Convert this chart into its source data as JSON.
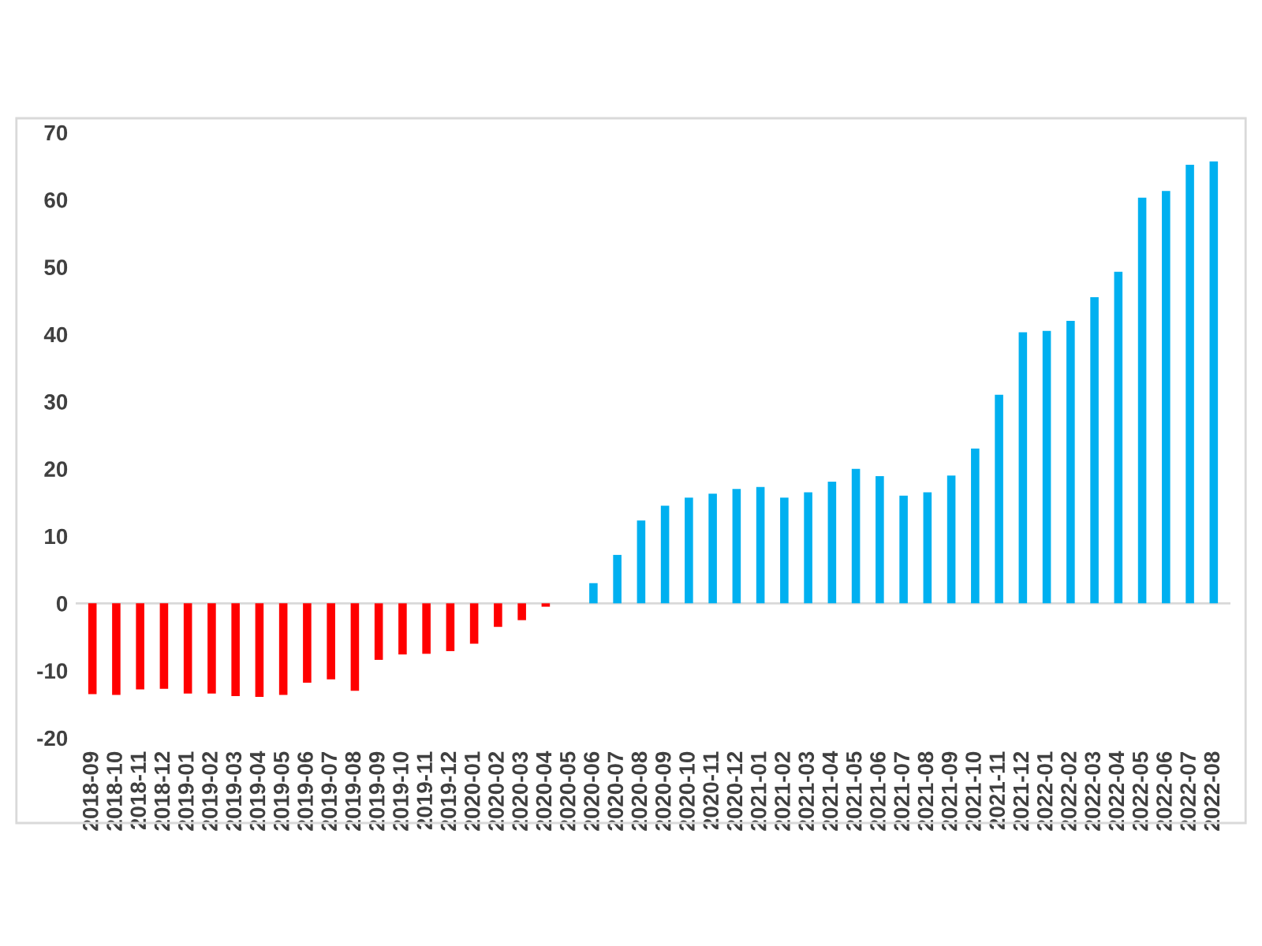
{
  "chart_data": {
    "type": "bar",
    "categories": [
      "2018-09",
      "2018-10",
      "2018-11",
      "2018-12",
      "2019-01",
      "2019-02",
      "2019-03",
      "2019-04",
      "2019-05",
      "2019-06",
      "2019-07",
      "2019-08",
      "2019-09",
      "2019-10",
      "2019-11",
      "2019-12",
      "2020-01",
      "2020-02",
      "2020-03",
      "2020-04",
      "2020-05",
      "2020-06",
      "2020-07",
      "2020-08",
      "2020-09",
      "2020-10",
      "2020-11",
      "2020-12",
      "2021-01",
      "2021-02",
      "2021-03",
      "2021-04",
      "2021-05",
      "2021-06",
      "2021-07",
      "2021-08",
      "2021-09",
      "2021-10",
      "2021-11",
      "2021-12",
      "2022-01",
      "2022-02",
      "2022-03",
      "2022-04",
      "2022-05",
      "2022-06",
      "2022-07",
      "2022-08"
    ],
    "values": [
      -13.5,
      -13.6,
      -12.8,
      -12.7,
      -13.4,
      -13.4,
      -13.8,
      -13.9,
      -13.6,
      -11.8,
      -11.3,
      -13.0,
      -8.4,
      -7.6,
      -7.5,
      -7.1,
      -6.0,
      -3.5,
      -2.5,
      -0.5,
      0,
      3.0,
      7.2,
      12.3,
      14.5,
      15.7,
      16.3,
      17.0,
      17.3,
      15.7,
      16.5,
      18.1,
      20.0,
      18.9,
      16.0,
      16.5,
      19.0,
      23.0,
      31.0,
      40.3,
      40.5,
      42.0,
      45.5,
      49.3,
      60.3,
      61.3,
      65.2,
      65.7
    ],
    "colors": [
      "#ff0000",
      "#ff0000",
      "#ff0000",
      "#ff0000",
      "#ff0000",
      "#ff0000",
      "#ff0000",
      "#ff0000",
      "#ff0000",
      "#ff0000",
      "#ff0000",
      "#ff0000",
      "#ff0000",
      "#ff0000",
      "#ff0000",
      "#ff0000",
      "#ff0000",
      "#ff0000",
      "#ff0000",
      "#ff0000",
      "#00b0f0",
      "#00b0f0",
      "#00b0f0",
      "#00b0f0",
      "#00b0f0",
      "#00b0f0",
      "#00b0f0",
      "#00b0f0",
      "#00b0f0",
      "#00b0f0",
      "#00b0f0",
      "#00b0f0",
      "#00b0f0",
      "#00b0f0",
      "#00b0f0",
      "#00b0f0",
      "#00b0f0",
      "#00b0f0",
      "#00b0f0",
      "#00b0f0",
      "#00b0f0",
      "#00b0f0",
      "#00b0f0",
      "#00b0f0",
      "#00b0f0",
      "#00b0f0",
      "#00b0f0",
      "#00b0f0"
    ],
    "ylim": [
      -20,
      70
    ],
    "yticks": [
      -20,
      -10,
      0,
      10,
      20,
      30,
      40,
      50,
      60,
      70
    ],
    "grid": false,
    "legend": false,
    "ref_lines": [
      {
        "axis": "y",
        "value": 0,
        "color": "#d9d9d9"
      }
    ]
  }
}
